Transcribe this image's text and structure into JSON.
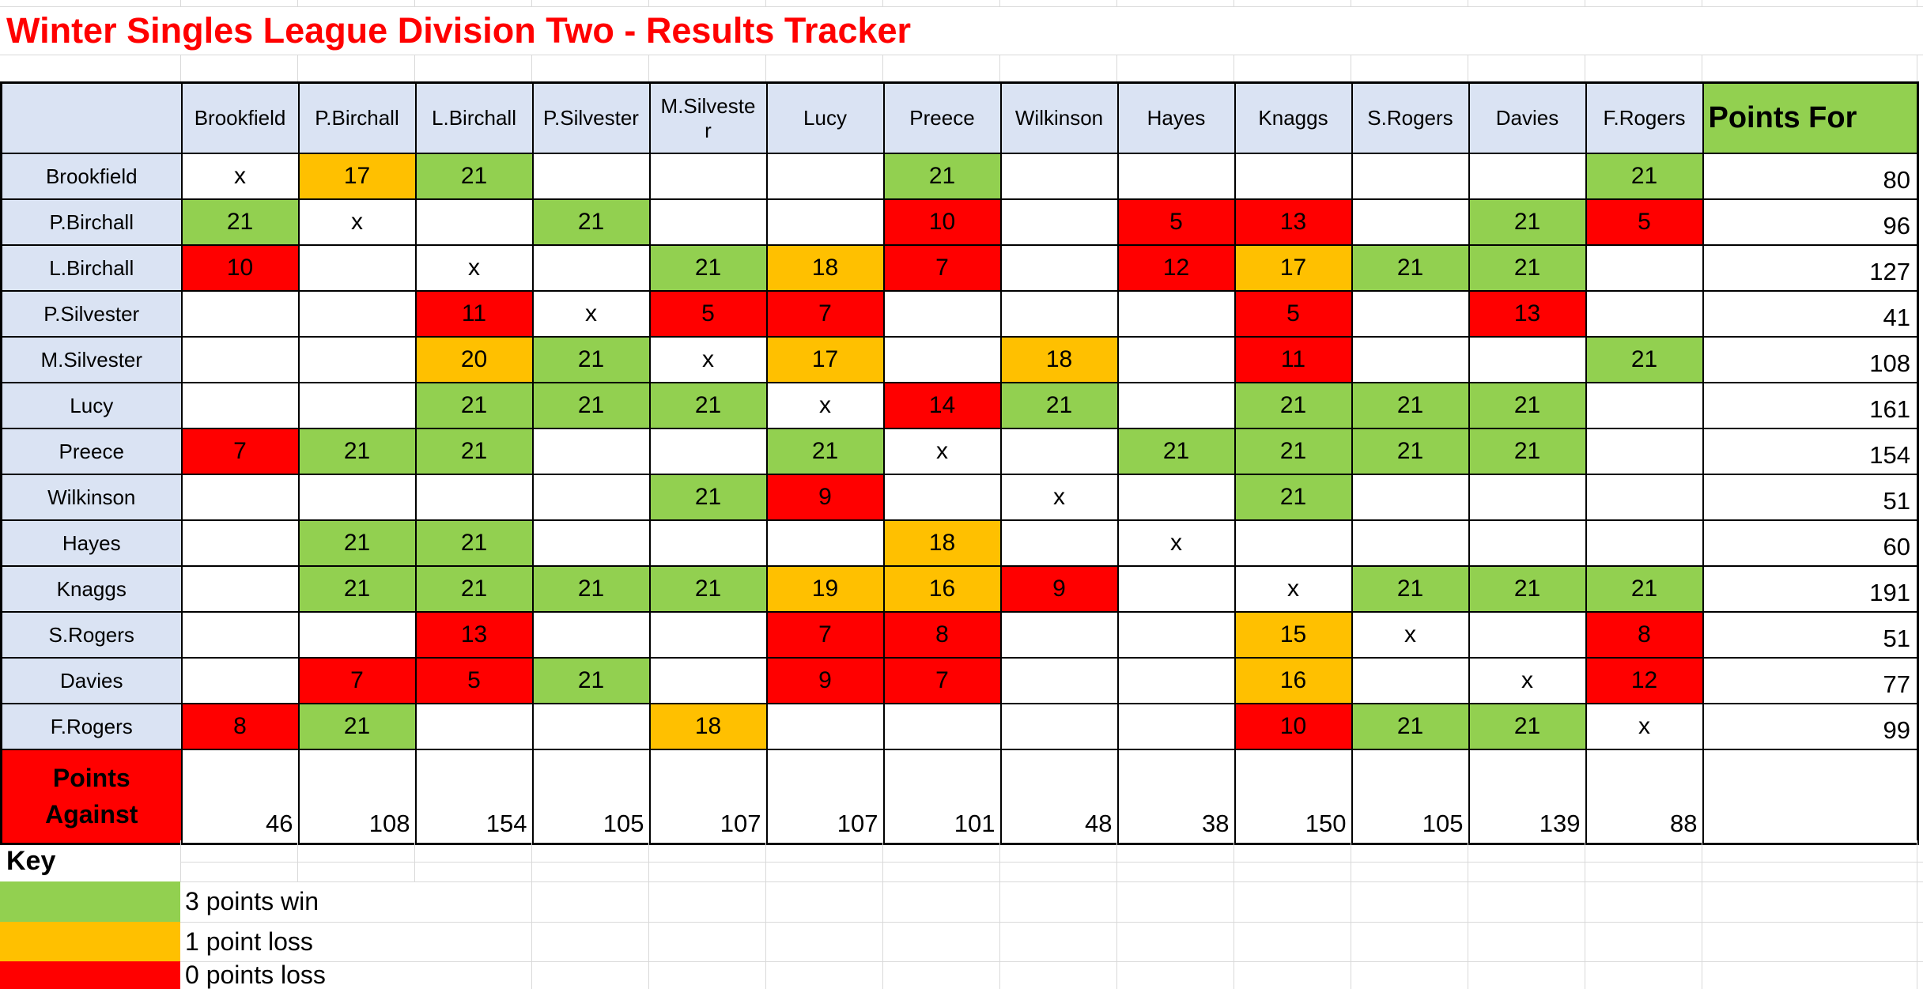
{
  "title": "Winter Singles League Division Two - Results Tracker",
  "colors": {
    "win_green": "#92d050",
    "one_point_loss_orange": "#ffc000",
    "zero_points_loss_red": "#ff0000",
    "header_blue": "#dae3f3",
    "title_red": "#ff0000"
  },
  "table": {
    "columns": [
      "Brookfield",
      "P.Birchall",
      "L.Birchall",
      "P.Silvester",
      "M.Silvester",
      "Lucy",
      "Preece",
      "Wilkinson",
      "Hayes",
      "Knaggs",
      "S.Rogers",
      "Davies",
      "F.Rogers"
    ],
    "points_for_label": "Points For",
    "points_against_label": "Points Against",
    "rows": [
      {
        "label": "Brookfield",
        "scores": [
          {
            "v": "x",
            "k": ""
          },
          {
            "v": "17",
            "k": "l1"
          },
          {
            "v": "21",
            "k": "w"
          },
          {
            "v": "",
            "k": ""
          },
          {
            "v": "",
            "k": ""
          },
          {
            "v": "",
            "k": ""
          },
          {
            "v": "21",
            "k": "w"
          },
          {
            "v": "",
            "k": ""
          },
          {
            "v": "",
            "k": ""
          },
          {
            "v": "",
            "k": ""
          },
          {
            "v": "",
            "k": ""
          },
          {
            "v": "",
            "k": ""
          },
          {
            "v": "21",
            "k": "w"
          }
        ],
        "points_for": "80"
      },
      {
        "label": "P.Birchall",
        "scores": [
          {
            "v": "21",
            "k": "w"
          },
          {
            "v": "x",
            "k": ""
          },
          {
            "v": "",
            "k": ""
          },
          {
            "v": "21",
            "k": "w"
          },
          {
            "v": "",
            "k": ""
          },
          {
            "v": "",
            "k": ""
          },
          {
            "v": "10",
            "k": "l0"
          },
          {
            "v": "",
            "k": ""
          },
          {
            "v": "5",
            "k": "l0"
          },
          {
            "v": "13",
            "k": "l0"
          },
          {
            "v": "",
            "k": ""
          },
          {
            "v": "21",
            "k": "w"
          },
          {
            "v": "5",
            "k": "l0"
          }
        ],
        "points_for": "96"
      },
      {
        "label": "L.Birchall",
        "scores": [
          {
            "v": "10",
            "k": "l0"
          },
          {
            "v": "",
            "k": ""
          },
          {
            "v": "x",
            "k": ""
          },
          {
            "v": "",
            "k": ""
          },
          {
            "v": "21",
            "k": "w"
          },
          {
            "v": "18",
            "k": "l1"
          },
          {
            "v": "7",
            "k": "l0"
          },
          {
            "v": "",
            "k": ""
          },
          {
            "v": "12",
            "k": "l0"
          },
          {
            "v": "17",
            "k": "l1"
          },
          {
            "v": "21",
            "k": "w"
          },
          {
            "v": "21",
            "k": "w"
          },
          {
            "v": "",
            "k": ""
          }
        ],
        "points_for": "127"
      },
      {
        "label": "P.Silvester",
        "scores": [
          {
            "v": "",
            "k": ""
          },
          {
            "v": "",
            "k": ""
          },
          {
            "v": "11",
            "k": "l0"
          },
          {
            "v": "x",
            "k": ""
          },
          {
            "v": "5",
            "k": "l0"
          },
          {
            "v": "7",
            "k": "l0"
          },
          {
            "v": "",
            "k": ""
          },
          {
            "v": "",
            "k": ""
          },
          {
            "v": "",
            "k": ""
          },
          {
            "v": "5",
            "k": "l0"
          },
          {
            "v": "",
            "k": ""
          },
          {
            "v": "13",
            "k": "l0"
          },
          {
            "v": "",
            "k": ""
          }
        ],
        "points_for": "41"
      },
      {
        "label": "M.Silvester",
        "scores": [
          {
            "v": "",
            "k": ""
          },
          {
            "v": "",
            "k": ""
          },
          {
            "v": "20",
            "k": "l1"
          },
          {
            "v": "21",
            "k": "w"
          },
          {
            "v": "x",
            "k": ""
          },
          {
            "v": "17",
            "k": "l1"
          },
          {
            "v": "",
            "k": ""
          },
          {
            "v": "18",
            "k": "l1"
          },
          {
            "v": "",
            "k": ""
          },
          {
            "v": "11",
            "k": "l0"
          },
          {
            "v": "",
            "k": ""
          },
          {
            "v": "",
            "k": ""
          },
          {
            "v": "21",
            "k": "w"
          }
        ],
        "points_for": "108"
      },
      {
        "label": "Lucy",
        "scores": [
          {
            "v": "",
            "k": ""
          },
          {
            "v": "",
            "k": ""
          },
          {
            "v": "21",
            "k": "w"
          },
          {
            "v": "21",
            "k": "w"
          },
          {
            "v": "21",
            "k": "w"
          },
          {
            "v": "x",
            "k": ""
          },
          {
            "v": "14",
            "k": "l0"
          },
          {
            "v": "21",
            "k": "w"
          },
          {
            "v": "",
            "k": ""
          },
          {
            "v": "21",
            "k": "w"
          },
          {
            "v": "21",
            "k": "w"
          },
          {
            "v": "21",
            "k": "w"
          },
          {
            "v": "",
            "k": ""
          }
        ],
        "points_for": "161"
      },
      {
        "label": "Preece",
        "scores": [
          {
            "v": "7",
            "k": "l0"
          },
          {
            "v": "21",
            "k": "w"
          },
          {
            "v": "21",
            "k": "w"
          },
          {
            "v": "",
            "k": ""
          },
          {
            "v": "",
            "k": ""
          },
          {
            "v": "21",
            "k": "w"
          },
          {
            "v": "x",
            "k": ""
          },
          {
            "v": "",
            "k": ""
          },
          {
            "v": "21",
            "k": "w"
          },
          {
            "v": "21",
            "k": "w"
          },
          {
            "v": "21",
            "k": "w"
          },
          {
            "v": "21",
            "k": "w"
          },
          {
            "v": "",
            "k": ""
          }
        ],
        "points_for": "154"
      },
      {
        "label": "Wilkinson",
        "scores": [
          {
            "v": "",
            "k": ""
          },
          {
            "v": "",
            "k": ""
          },
          {
            "v": "",
            "k": ""
          },
          {
            "v": "",
            "k": ""
          },
          {
            "v": "21",
            "k": "w"
          },
          {
            "v": "9",
            "k": "l0"
          },
          {
            "v": "",
            "k": ""
          },
          {
            "v": "x",
            "k": ""
          },
          {
            "v": "",
            "k": ""
          },
          {
            "v": "21",
            "k": "w"
          },
          {
            "v": "",
            "k": ""
          },
          {
            "v": "",
            "k": ""
          },
          {
            "v": "",
            "k": ""
          }
        ],
        "points_for": "51"
      },
      {
        "label": "Hayes",
        "scores": [
          {
            "v": "",
            "k": ""
          },
          {
            "v": "21",
            "k": "w"
          },
          {
            "v": "21",
            "k": "w"
          },
          {
            "v": "",
            "k": ""
          },
          {
            "v": "",
            "k": ""
          },
          {
            "v": "",
            "k": ""
          },
          {
            "v": "18",
            "k": "l1"
          },
          {
            "v": "",
            "k": ""
          },
          {
            "v": "x",
            "k": ""
          },
          {
            "v": "",
            "k": ""
          },
          {
            "v": "",
            "k": ""
          },
          {
            "v": "",
            "k": ""
          },
          {
            "v": "",
            "k": ""
          }
        ],
        "points_for": "60"
      },
      {
        "label": "Knaggs",
        "scores": [
          {
            "v": "",
            "k": ""
          },
          {
            "v": "21",
            "k": "w"
          },
          {
            "v": "21",
            "k": "w"
          },
          {
            "v": "21",
            "k": "w"
          },
          {
            "v": "21",
            "k": "w"
          },
          {
            "v": "19",
            "k": "l1"
          },
          {
            "v": "16",
            "k": "l1"
          },
          {
            "v": "9",
            "k": "l0"
          },
          {
            "v": "",
            "k": ""
          },
          {
            "v": "x",
            "k": ""
          },
          {
            "v": "21",
            "k": "w"
          },
          {
            "v": "21",
            "k": "w"
          },
          {
            "v": "21",
            "k": "w"
          }
        ],
        "points_for": "191"
      },
      {
        "label": "S.Rogers",
        "scores": [
          {
            "v": "",
            "k": ""
          },
          {
            "v": "",
            "k": ""
          },
          {
            "v": "13",
            "k": "l0"
          },
          {
            "v": "",
            "k": ""
          },
          {
            "v": "",
            "k": ""
          },
          {
            "v": "7",
            "k": "l0"
          },
          {
            "v": "8",
            "k": "l0"
          },
          {
            "v": "",
            "k": ""
          },
          {
            "v": "",
            "k": ""
          },
          {
            "v": "15",
            "k": "l1"
          },
          {
            "v": "x",
            "k": ""
          },
          {
            "v": "",
            "k": ""
          },
          {
            "v": "8",
            "k": "l0"
          }
        ],
        "points_for": "51"
      },
      {
        "label": "Davies",
        "scores": [
          {
            "v": "",
            "k": ""
          },
          {
            "v": "7",
            "k": "l0"
          },
          {
            "v": "5",
            "k": "l0"
          },
          {
            "v": "21",
            "k": "w"
          },
          {
            "v": "",
            "k": ""
          },
          {
            "v": "9",
            "k": "l0"
          },
          {
            "v": "7",
            "k": "l0"
          },
          {
            "v": "",
            "k": ""
          },
          {
            "v": "",
            "k": ""
          },
          {
            "v": "16",
            "k": "l1"
          },
          {
            "v": "",
            "k": ""
          },
          {
            "v": "x",
            "k": ""
          },
          {
            "v": "12",
            "k": "l0"
          }
        ],
        "points_for": "77"
      },
      {
        "label": "F.Rogers",
        "scores": [
          {
            "v": "8",
            "k": "l0"
          },
          {
            "v": "21",
            "k": "w"
          },
          {
            "v": "",
            "k": ""
          },
          {
            "v": "",
            "k": ""
          },
          {
            "v": "18",
            "k": "l1"
          },
          {
            "v": "",
            "k": ""
          },
          {
            "v": "",
            "k": ""
          },
          {
            "v": "",
            "k": ""
          },
          {
            "v": "",
            "k": ""
          },
          {
            "v": "10",
            "k": "l0"
          },
          {
            "v": "21",
            "k": "w"
          },
          {
            "v": "21",
            "k": "w"
          },
          {
            "v": "x",
            "k": ""
          }
        ],
        "points_for": "99"
      }
    ],
    "points_against": [
      "46",
      "108",
      "154",
      "105",
      "107",
      "107",
      "101",
      "48",
      "38",
      "150",
      "105",
      "139",
      "88"
    ]
  },
  "key": {
    "label": "Key",
    "items": [
      {
        "swatch": "win-green",
        "label": "3 points win"
      },
      {
        "swatch": "one-point-orange",
        "label": "1 point loss"
      },
      {
        "swatch": "zero-points-red",
        "label": "0 points loss"
      }
    ]
  }
}
